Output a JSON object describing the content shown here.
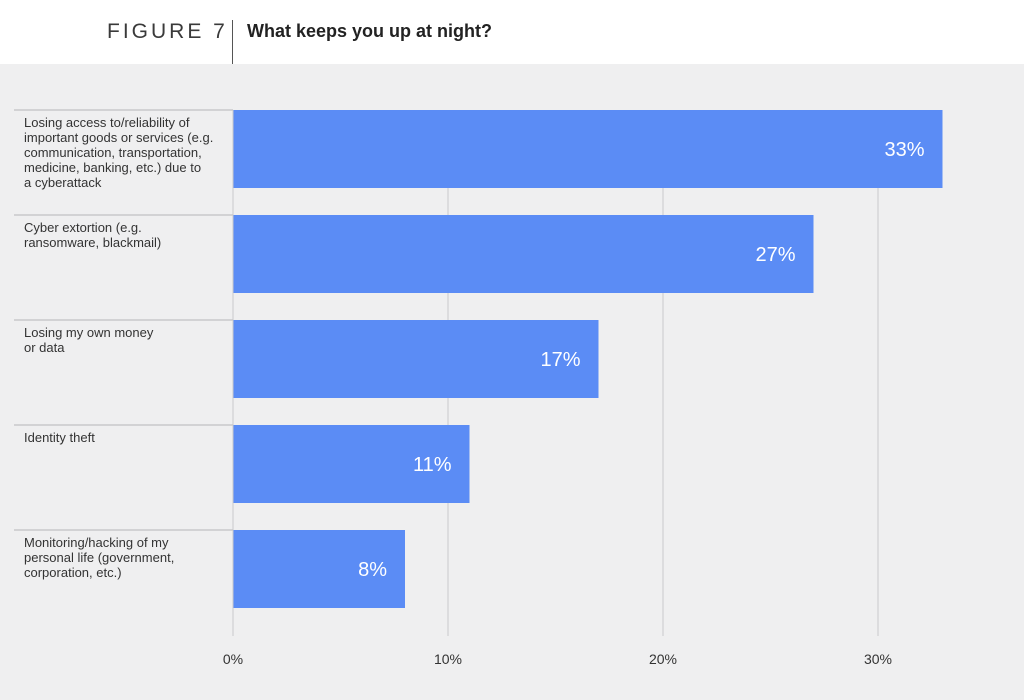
{
  "figure": {
    "label": "FIGURE 7",
    "title": "What keeps you up at night?"
  },
  "colors": {
    "bar": "#5b8cf5",
    "background": "#efeff0",
    "grid": "#c8c8cc",
    "separator": "#b4b4b8",
    "value_text": "#ffffff"
  },
  "chart_data": {
    "type": "bar",
    "orientation": "horizontal",
    "title": "What keeps you up at night?",
    "xlabel": "",
    "ylabel": "",
    "xlim": [
      0,
      33
    ],
    "grid": true,
    "ticks": [
      0,
      10,
      20,
      30
    ],
    "tick_labels": [
      "0%",
      "10%",
      "20%",
      "30%"
    ],
    "categories": [
      [
        "Losing access to/reliability of",
        "important goods or services (e.g.",
        "communication, transportation,",
        "medicine, banking, etc.) due to",
        "a cyberattack"
      ],
      [
        "Cyber extortion (e.g.",
        "ransomware, blackmail)"
      ],
      [
        "Losing my own money",
        "or data"
      ],
      [
        "Identity theft"
      ],
      [
        "Monitoring/hacking of my",
        "personal life (government,",
        "corporation, etc.)"
      ]
    ],
    "values": [
      33,
      27,
      17,
      11,
      8
    ],
    "data_labels": [
      "33%",
      "27%",
      "17%",
      "11%",
      "8%"
    ]
  }
}
